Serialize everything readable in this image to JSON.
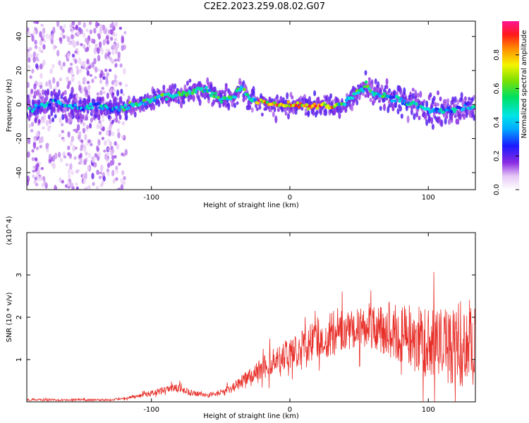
{
  "title": "C2E2.2023.259.08.02.G07",
  "chart_data": [
    {
      "type": "heatmap",
      "title": "C2E2.2023.259.08.02.G07",
      "xlabel": "Height of straight line (km)",
      "ylabel": "Frequency (Hz)",
      "xlim": [
        -190,
        134
      ],
      "ylim": [
        -50,
        49
      ],
      "xticks": [
        -100,
        0,
        100
      ],
      "yticks": [
        -40,
        -20,
        0,
        20,
        40
      ],
      "colorbar": {
        "label": "Normalized spectral amplitude",
        "range": [
          0,
          1
        ],
        "ticks": [
          0.0,
          0.2,
          0.4,
          0.6,
          0.8
        ]
      },
      "ridge": {
        "x": [
          -186,
          -170,
          -160,
          -150,
          -140,
          -130,
          -120,
          -110,
          -100,
          -90,
          -80,
          -70,
          -60,
          -50,
          -40,
          -35,
          -30,
          -20,
          -10,
          0,
          10,
          20,
          30,
          38,
          45,
          50,
          55,
          60,
          70,
          80,
          90,
          100,
          110,
          120,
          134
        ],
        "frequency": [
          -3,
          2,
          -1,
          -2,
          -1,
          -3,
          -2,
          0,
          3,
          5,
          6,
          8,
          9,
          3,
          5,
          11,
          4,
          1,
          -1,
          0,
          -1,
          0,
          -1,
          0,
          4,
          8,
          12,
          6,
          5,
          3,
          0,
          -3,
          -4,
          -3,
          -1
        ]
      },
      "grid": false
    },
    {
      "type": "line",
      "xlabel": "Height of straight line (km)",
      "ylabel": "SNR (10 * v/v)",
      "y_multiplier": "(x10^4)",
      "xlim": [
        -190,
        134
      ],
      "ylim": [
        0,
        4
      ],
      "xticks": [
        -100,
        0,
        100
      ],
      "yticks": [
        1,
        2,
        3
      ],
      "series": [
        {
          "color": "#e8302a",
          "x": [
            -190,
            -170,
            -150,
            -130,
            -120,
            -110,
            -100,
            -90,
            -80,
            -70,
            -60,
            -50,
            -40,
            -30,
            -20,
            -10,
            0,
            10,
            20,
            30,
            40,
            50,
            60,
            70,
            80,
            90,
            100,
            110,
            120,
            134
          ],
          "values": [
            0.05,
            0.05,
            0.05,
            0.05,
            0.08,
            0.15,
            0.2,
            0.28,
            0.32,
            0.2,
            0.15,
            0.22,
            0.35,
            0.6,
            0.8,
            1.0,
            1.15,
            1.3,
            1.5,
            1.6,
            1.7,
            1.75,
            1.75,
            1.7,
            1.6,
            1.5,
            1.4,
            1.35,
            1.35,
            1.4
          ]
        }
      ],
      "grid": false
    }
  ]
}
